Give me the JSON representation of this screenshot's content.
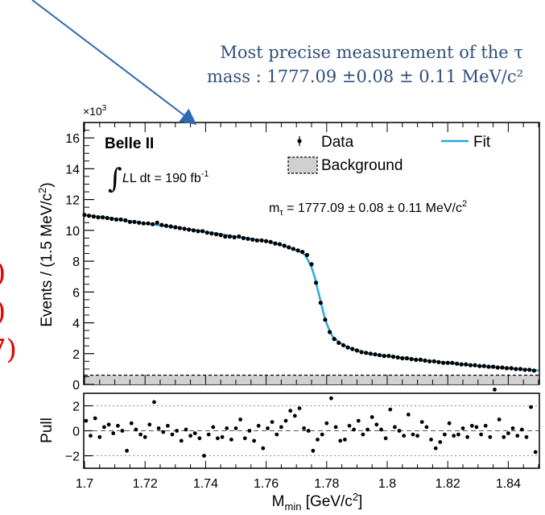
{
  "annotation": {
    "line1": "Most precise measurement of the τ",
    "line2": "mass : 1777.09 ±0.08 ± 0.11 MeV/c²",
    "color": "#2f4f7a",
    "arrow_color": "#2e6ab0"
  },
  "side_marks": [
    ")",
    ")",
    "7)"
  ],
  "colors": {
    "fit": "#2aa8e0",
    "data": "#000000",
    "side_marks": "#e00000",
    "background_fill": "#d0d0d0"
  },
  "chart_data": [
    {
      "type": "scatter",
      "title": "",
      "experiment": "Belle II",
      "lumi_text": "L dt = 190 fb",
      "lumi_sup": "-1",
      "measurement_text": "m",
      "measurement_sub": "τ",
      "measurement_value": " = 1777.09 ± 0.08 ± 0.11 MeV/c",
      "measurement_sup": "2",
      "ylabel": "Events / (1.5 MeV/c",
      "ylabel_sup": "2",
      "ylabel_close": ")",
      "y_multiplier": "×10",
      "y_multiplier_sup": "3",
      "xlim": [
        1.7,
        1.85
      ],
      "ylim": [
        0,
        17
      ],
      "yticks": [
        "0",
        "2",
        "4",
        "6",
        "8",
        "10",
        "12",
        "14",
        "16"
      ],
      "legend": {
        "data": "Data",
        "fit": "Fit",
        "background": "Background"
      },
      "legend_placement": "top-right",
      "background_level": 0.6,
      "data": [
        [
          1.7,
          11.0
        ],
        [
          1.7015,
          10.95
        ],
        [
          1.703,
          10.9
        ],
        [
          1.7045,
          10.85
        ],
        [
          1.706,
          10.85
        ],
        [
          1.7075,
          10.8
        ],
        [
          1.709,
          10.75
        ],
        [
          1.7105,
          10.7
        ],
        [
          1.712,
          10.7
        ],
        [
          1.7135,
          10.65
        ],
        [
          1.715,
          10.55
        ],
        [
          1.7165,
          10.55
        ],
        [
          1.718,
          10.5
        ],
        [
          1.7195,
          10.45
        ],
        [
          1.721,
          10.45
        ],
        [
          1.7225,
          10.4
        ],
        [
          1.724,
          10.5
        ],
        [
          1.7255,
          10.35
        ],
        [
          1.727,
          10.3
        ],
        [
          1.7285,
          10.25
        ],
        [
          1.73,
          10.2
        ],
        [
          1.7315,
          10.15
        ],
        [
          1.733,
          10.1
        ],
        [
          1.7345,
          10.05
        ],
        [
          1.736,
          10.0
        ],
        [
          1.7375,
          9.95
        ],
        [
          1.739,
          9.95
        ],
        [
          1.7405,
          9.85
        ],
        [
          1.742,
          9.8
        ],
        [
          1.7435,
          9.75
        ],
        [
          1.745,
          9.7
        ],
        [
          1.7465,
          9.6
        ],
        [
          1.748,
          9.6
        ],
        [
          1.7495,
          9.55
        ],
        [
          1.751,
          9.6
        ],
        [
          1.7525,
          9.5
        ],
        [
          1.754,
          9.45
        ],
        [
          1.7555,
          9.4
        ],
        [
          1.757,
          9.35
        ],
        [
          1.7585,
          9.35
        ],
        [
          1.76,
          9.3
        ],
        [
          1.7615,
          9.25
        ],
        [
          1.763,
          9.15
        ],
        [
          1.7645,
          9.1
        ],
        [
          1.766,
          9.0
        ],
        [
          1.7675,
          8.9
        ],
        [
          1.769,
          8.8
        ],
        [
          1.7705,
          8.7
        ],
        [
          1.772,
          8.6
        ],
        [
          1.7735,
          8.4
        ],
        [
          1.775,
          7.8
        ],
        [
          1.7765,
          6.6
        ],
        [
          1.778,
          5.3
        ],
        [
          1.7795,
          4.2
        ],
        [
          1.781,
          3.4
        ],
        [
          1.7825,
          2.95
        ],
        [
          1.784,
          2.7
        ],
        [
          1.7855,
          2.55
        ],
        [
          1.787,
          2.4
        ],
        [
          1.7885,
          2.3
        ],
        [
          1.79,
          2.2
        ],
        [
          1.7915,
          2.1
        ],
        [
          1.793,
          2.05
        ],
        [
          1.7945,
          2.0
        ],
        [
          1.796,
          1.95
        ],
        [
          1.7975,
          1.9
        ],
        [
          1.799,
          1.85
        ],
        [
          1.8005,
          1.85
        ],
        [
          1.802,
          1.8
        ],
        [
          1.8035,
          1.75
        ],
        [
          1.805,
          1.7
        ],
        [
          1.8065,
          1.7
        ],
        [
          1.808,
          1.65
        ],
        [
          1.8095,
          1.6
        ],
        [
          1.811,
          1.6
        ],
        [
          1.8125,
          1.55
        ],
        [
          1.814,
          1.5
        ],
        [
          1.8155,
          1.5
        ],
        [
          1.817,
          1.45
        ],
        [
          1.8185,
          1.4
        ],
        [
          1.82,
          1.4
        ],
        [
          1.8215,
          1.4
        ],
        [
          1.823,
          1.35
        ],
        [
          1.8245,
          1.3
        ],
        [
          1.826,
          1.3
        ],
        [
          1.8275,
          1.25
        ],
        [
          1.829,
          1.25
        ],
        [
          1.8305,
          1.2
        ],
        [
          1.832,
          1.2
        ],
        [
          1.8335,
          1.15
        ],
        [
          1.835,
          1.15
        ],
        [
          1.8365,
          1.1
        ],
        [
          1.838,
          1.1
        ],
        [
          1.8395,
          1.05
        ],
        [
          1.841,
          1.05
        ],
        [
          1.8425,
          1.0
        ],
        [
          1.844,
          1.0
        ],
        [
          1.8455,
          0.95
        ],
        [
          1.847,
          0.95
        ],
        [
          1.8485,
          0.9
        ]
      ],
      "fit": [
        [
          1.7,
          11.0
        ],
        [
          1.71,
          10.75
        ],
        [
          1.72,
          10.45
        ],
        [
          1.73,
          10.2
        ],
        [
          1.74,
          9.9
        ],
        [
          1.75,
          9.6
        ],
        [
          1.76,
          9.3
        ],
        [
          1.765,
          9.05
        ],
        [
          1.768,
          8.85
        ],
        [
          1.77,
          8.7
        ],
        [
          1.772,
          8.55
        ],
        [
          1.773,
          8.35
        ],
        [
          1.774,
          8.0
        ],
        [
          1.775,
          7.6
        ],
        [
          1.776,
          7.0
        ],
        [
          1.777,
          6.2
        ],
        [
          1.778,
          5.4
        ],
        [
          1.779,
          4.6
        ],
        [
          1.78,
          3.95
        ],
        [
          1.781,
          3.45
        ],
        [
          1.782,
          3.1
        ],
        [
          1.784,
          2.75
        ],
        [
          1.787,
          2.4
        ],
        [
          1.79,
          2.2
        ],
        [
          1.795,
          1.95
        ],
        [
          1.8,
          1.85
        ],
        [
          1.81,
          1.6
        ],
        [
          1.82,
          1.4
        ],
        [
          1.83,
          1.2
        ],
        [
          1.84,
          1.05
        ],
        [
          1.85,
          0.9
        ]
      ]
    },
    {
      "type": "scatter",
      "ylabel": "Pull",
      "xlabel": "M",
      "xlabel_sub": "min",
      "xlabel_unit": " [GeV/c",
      "xlabel_sup": "2",
      "xlabel_close": "]",
      "xlim": [
        1.7,
        1.85
      ],
      "ylim": [
        -3,
        3
      ],
      "yticks": [
        "−2",
        "0",
        "2"
      ],
      "xticks": [
        "1.7",
        "1.72",
        "1.74",
        "1.76",
        "1.78",
        "1.8",
        "1.82",
        "1.84"
      ],
      "reference_lines": [
        -2,
        0,
        2
      ],
      "pulls": [
        [
          1.7005,
          0.8
        ],
        [
          1.702,
          -0.4
        ],
        [
          1.7035,
          1.0
        ],
        [
          1.705,
          -0.5
        ],
        [
          1.7065,
          0.3
        ],
        [
          1.708,
          0.5
        ],
        [
          1.7095,
          -0.2
        ],
        [
          1.711,
          0.4
        ],
        [
          1.7125,
          0.0
        ],
        [
          1.714,
          -1.6
        ],
        [
          1.7155,
          0.6
        ],
        [
          1.717,
          0.1
        ],
        [
          1.7185,
          -0.3
        ],
        [
          1.72,
          -0.5
        ],
        [
          1.7215,
          0.5
        ],
        [
          1.723,
          2.3
        ],
        [
          1.7245,
          0.2
        ],
        [
          1.726,
          -0.1
        ],
        [
          1.7275,
          0.4
        ],
        [
          1.729,
          -0.3
        ],
        [
          1.7305,
          0.0
        ],
        [
          1.732,
          -0.8
        ],
        [
          1.7335,
          0.1
        ],
        [
          1.735,
          -0.4
        ],
        [
          1.7365,
          -0.2
        ],
        [
          1.738,
          -0.6
        ],
        [
          1.7395,
          -2.0
        ],
        [
          1.741,
          -0.3
        ],
        [
          1.7425,
          0.3
        ],
        [
          1.744,
          -0.6
        ],
        [
          1.7455,
          -0.5
        ],
        [
          1.747,
          0.2
        ],
        [
          1.7485,
          -0.7
        ],
        [
          1.75,
          0.2
        ],
        [
          1.7515,
          0.9
        ],
        [
          1.753,
          -0.6
        ],
        [
          1.7545,
          0.0
        ],
        [
          1.756,
          -0.8
        ],
        [
          1.7575,
          0.4
        ],
        [
          1.759,
          -1.4
        ],
        [
          1.7605,
          0.2
        ],
        [
          1.762,
          0.7
        ],
        [
          1.7635,
          -0.3
        ],
        [
          1.765,
          0.3
        ],
        [
          1.7665,
          0.8
        ],
        [
          1.768,
          1.6
        ],
        [
          1.7695,
          1.2
        ],
        [
          1.771,
          1.8
        ],
        [
          1.7725,
          0.2
        ],
        [
          1.774,
          0.0
        ],
        [
          1.7755,
          -1.6
        ],
        [
          1.777,
          -0.7
        ],
        [
          1.7785,
          -0.3
        ],
        [
          1.78,
          0.6
        ],
        [
          1.7815,
          2.6
        ],
        [
          1.783,
          0.3
        ],
        [
          1.7845,
          -0.8
        ],
        [
          1.786,
          -0.7
        ],
        [
          1.7875,
          0.4
        ],
        [
          1.789,
          0.1
        ],
        [
          1.7905,
          0.8
        ],
        [
          1.792,
          -0.3
        ],
        [
          1.7935,
          0.1
        ],
        [
          1.795,
          1.1
        ],
        [
          1.7965,
          0.5
        ],
        [
          1.798,
          0.1
        ],
        [
          1.7995,
          -0.6
        ],
        [
          1.801,
          1.7
        ],
        [
          1.8025,
          0.3
        ],
        [
          1.804,
          0.0
        ],
        [
          1.8055,
          -0.4
        ],
        [
          1.807,
          1.3
        ],
        [
          1.8085,
          -0.3
        ],
        [
          1.81,
          -0.4
        ],
        [
          1.8115,
          0.7
        ],
        [
          1.813,
          0.3
        ],
        [
          1.8145,
          -0.7
        ],
        [
          1.816,
          -1.4
        ],
        [
          1.8175,
          -0.9
        ],
        [
          1.819,
          -0.3
        ],
        [
          1.8205,
          0.6
        ],
        [
          1.822,
          -0.4
        ],
        [
          1.8235,
          -0.3
        ],
        [
          1.825,
          0.2
        ],
        [
          1.8265,
          -0.5
        ],
        [
          1.828,
          0.4
        ],
        [
          1.8295,
          0.3
        ],
        [
          1.831,
          -0.3
        ],
        [
          1.8325,
          0.4
        ],
        [
          1.834,
          -0.5
        ],
        [
          1.8355,
          3.3
        ],
        [
          1.837,
          0.9
        ],
        [
          1.8385,
          -0.5
        ],
        [
          1.84,
          -0.2
        ],
        [
          1.8415,
          0.2
        ],
        [
          1.843,
          -0.4
        ],
        [
          1.8445,
          0.1
        ],
        [
          1.846,
          -0.5
        ],
        [
          1.8475,
          1.9
        ],
        [
          1.849,
          -1.7
        ]
      ]
    }
  ]
}
